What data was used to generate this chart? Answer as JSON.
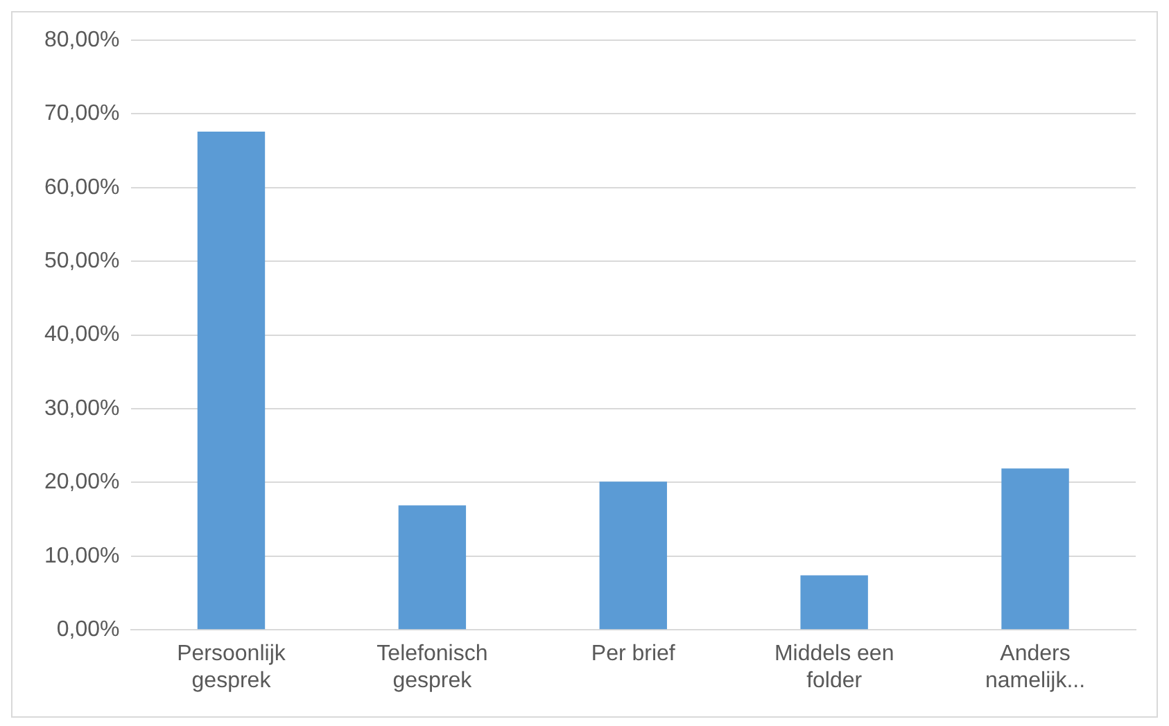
{
  "chart_data": {
    "type": "bar",
    "categories": [
      "Persoonlijk gesprek",
      "Telefonisch gesprek",
      "Per brief",
      "Middels een folder",
      "Anders namelijk..."
    ],
    "values": [
      67.6,
      16.9,
      20.1,
      7.4,
      21.9
    ],
    "color": "#5b9bd5",
    "ylim": [
      0,
      80
    ],
    "yticks": [
      {
        "value": 0,
        "label": "0,00%"
      },
      {
        "value": 10,
        "label": "10,00%"
      },
      {
        "value": 20,
        "label": "20,00%"
      },
      {
        "value": 30,
        "label": "30,00%"
      },
      {
        "value": 40,
        "label": "40,00%"
      },
      {
        "value": 50,
        "label": "50,00%"
      },
      {
        "value": 60,
        "label": "60,00%"
      },
      {
        "value": 70,
        "label": "70,00%"
      },
      {
        "value": 80,
        "label": "80,00%"
      }
    ],
    "grid": "y",
    "legend": false
  }
}
